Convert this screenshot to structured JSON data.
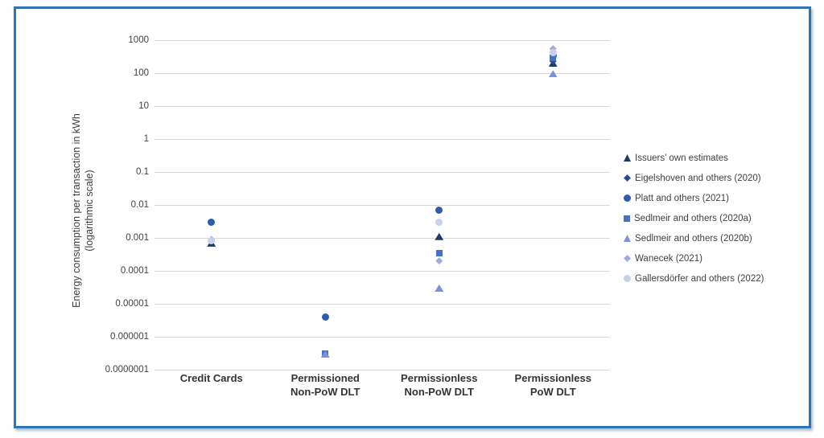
{
  "colors": {
    "frame_border": "#2e75b6",
    "gridline": "#d9d9d9",
    "text": "#404040"
  },
  "chart_data": {
    "type": "scatter",
    "title": "",
    "ylabel_line1": "Energy consumption per transaction in kWh",
    "ylabel_line2": "(logarithmic scale)",
    "y_scale": "log10",
    "ylim": [
      1e-07,
      1000
    ],
    "grid": "horizontal",
    "legend_position": "right",
    "y_ticks": [
      1000,
      100,
      10,
      1,
      0.1,
      0.01,
      0.001,
      0.0001,
      1e-05,
      1e-06,
      1e-07
    ],
    "y_tick_labels": [
      "1000",
      "100",
      "10",
      "1",
      "0.1",
      "0.01",
      "0.001",
      "0.0001",
      "0.00001",
      "0.000001",
      "0.0000001"
    ],
    "categories": [
      "Credit Cards",
      "Permissioned Non-PoW DLT",
      "Permissionless Non-PoW DLT",
      "Permissionless PoW DLT"
    ],
    "category_label_lines": [
      [
        "Credit Cards"
      ],
      [
        "Permissioned",
        "Non-PoW DLT"
      ],
      [
        "Permissionless",
        "Non-PoW DLT"
      ],
      [
        "Permissionless",
        "PoW DLT"
      ]
    ],
    "series": [
      {
        "name": "Issuers’ own estimates",
        "marker": "triangle",
        "color": "#1f3864",
        "values": [
          0.0007,
          null,
          0.0011,
          200
        ]
      },
      {
        "name": "Eigelshoven and others (2020)",
        "marker": "diamond",
        "color": "#2e4d8f",
        "values": [
          null,
          null,
          null,
          230
        ]
      },
      {
        "name": "Platt and others (2021)",
        "marker": "circle",
        "color": "#2f5cab",
        "values": [
          0.003,
          4e-06,
          0.007,
          340
        ]
      },
      {
        "name": "Sedlmeir and others (2020a)",
        "marker": "square",
        "color": "#4472c4",
        "values": [
          null,
          3e-07,
          0.00035,
          290
        ]
      },
      {
        "name": "Sedlmeir and others (2020b)",
        "marker": "triangle",
        "color": "#7e91d3",
        "values": [
          null,
          3e-07,
          3e-05,
          95
        ]
      },
      {
        "name": "Wanecek (2021)",
        "marker": "diamond",
        "color": "#a0ace1",
        "values": [
          0.0009,
          null,
          0.0002,
          550
        ]
      },
      {
        "name": "Gallersdörfer and others (2022)",
        "marker": "circle",
        "color": "#c9d0ec",
        "values": [
          0.0008,
          null,
          0.003,
          420
        ]
      }
    ]
  }
}
